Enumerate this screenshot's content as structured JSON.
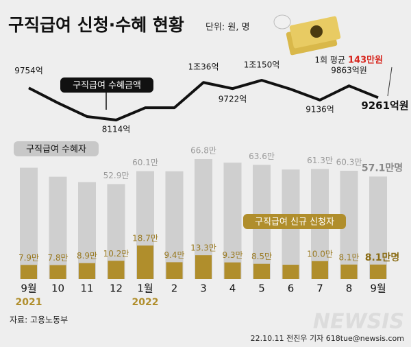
{
  "chart_data": {
    "type": "combo",
    "title": "구직급여 신청·수혜 현황",
    "unit": "단위: 원, 명",
    "note_label": "1회 평균",
    "note_value": "143만원",
    "categories": [
      "9월",
      "10",
      "11",
      "12",
      "1월",
      "2",
      "3",
      "4",
      "5",
      "6",
      "7",
      "8",
      "9월"
    ],
    "x_sublabels": [
      "2021",
      null,
      null,
      null,
      "2022",
      null,
      null,
      null,
      null,
      null,
      null,
      null,
      null
    ],
    "series": [
      {
        "name": "구직급여 수혜금액",
        "kind": "line",
        "color": "#111111",
        "values": [
          9754,
          8990,
          8290,
          8114,
          8740,
          8740,
          10036,
          9722,
          10150,
          9690,
          9136,
          9863,
          9261
        ],
        "value_labels": [
          "9754억",
          null,
          null,
          "8114억",
          null,
          null,
          "1조36억",
          "9722억",
          "1조150억",
          null,
          "9136억",
          "9863억원",
          "9261억원"
        ]
      },
      {
        "name": "구직급여 수혜자",
        "kind": "bar",
        "color": "#cfcfcf",
        "values": [
          62.0,
          57.0,
          54.0,
          52.9,
          60.1,
          60.0,
          66.8,
          64.8,
          63.6,
          61.0,
          61.3,
          60.3,
          57.1
        ],
        "value_labels": [
          null,
          null,
          null,
          "52.9만",
          "60.1만",
          null,
          "66.8만",
          null,
          "63.6만",
          null,
          "61.3만",
          "60.3만",
          "57.1만명"
        ]
      },
      {
        "name": "구직급여 신규 신청자",
        "kind": "bar",
        "color": "#b08e2c",
        "values": [
          7.9,
          7.8,
          8.9,
          10.2,
          18.7,
          9.4,
          13.3,
          9.3,
          8.5,
          8.0,
          10.0,
          8.1,
          8.1
        ],
        "value_labels": [
          "7.9만",
          "7.8만",
          "8.9만",
          "10.2만",
          "18.7만",
          "9.4만",
          "13.3만",
          "9.3만",
          "8.5만",
          null,
          "10.0만",
          "8.1만",
          "8.1만명"
        ]
      }
    ],
    "source": "자료: 고용노동부",
    "credit": "22.10.11 전진우 기자 618tue@newsis.com",
    "watermark": "NEWSIS"
  }
}
